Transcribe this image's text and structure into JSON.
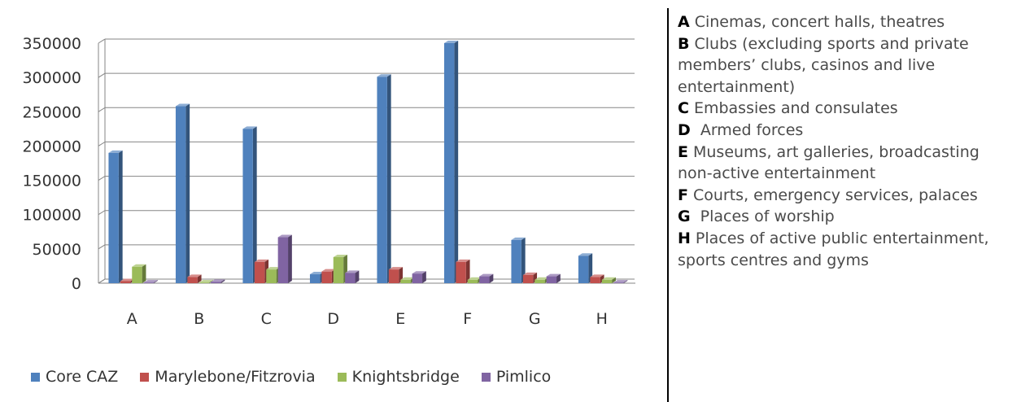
{
  "chart_data": {
    "type": "bar",
    "title": "",
    "xlabel": "",
    "ylabel": "",
    "ylim": [
      0,
      350000
    ],
    "yticks": [
      "0",
      "50000",
      "100000",
      "150000",
      "200000",
      "250000",
      "300000",
      "350000"
    ],
    "categories": [
      "A",
      "B",
      "C",
      "D",
      "E",
      "F",
      "G",
      "H"
    ],
    "series": [
      {
        "name": "Core CAZ",
        "color": "#4f81bd",
        "values": [
          190000,
          258000,
          225000,
          13000,
          301000,
          350000,
          63000,
          40000
        ]
      },
      {
        "name": "Marylebone/Fitzrovia",
        "color": "#c0504d",
        "values": [
          3000,
          9000,
          31000,
          17000,
          20000,
          31000,
          12000,
          9000
        ]
      },
      {
        "name": "Knightsbridge",
        "color": "#9bbb59",
        "values": [
          24000,
          1000,
          20000,
          38000,
          5000,
          5000,
          5000,
          5000
        ]
      },
      {
        "name": "Pimlico",
        "color": "#8064a2",
        "values": [
          1000,
          2000,
          67000,
          15000,
          14000,
          10000,
          10000,
          1000
        ]
      }
    ],
    "grid": true,
    "legend_position": "bottom",
    "style": "3d-clustered-column"
  },
  "key": [
    {
      "letter": "A",
      "text": "Cinemas, concert halls, theatres"
    },
    {
      "letter": "B",
      "text": "Clubs (excluding sports and private members’ clubs, casinos and live entertainment)"
    },
    {
      "letter": "C",
      "text": "Embassies and consulates"
    },
    {
      "letter": "D",
      "text": " Armed forces"
    },
    {
      "letter": "E",
      "text": "Museums, art galleries, broadcasting non-active entertainment"
    },
    {
      "letter": "F",
      "text": "Courts, emergency services, palaces"
    },
    {
      "letter": "G",
      "text": " Places of worship"
    },
    {
      "letter": "H",
      "text": "Places of active public entertainment, sports centres and gyms"
    }
  ]
}
